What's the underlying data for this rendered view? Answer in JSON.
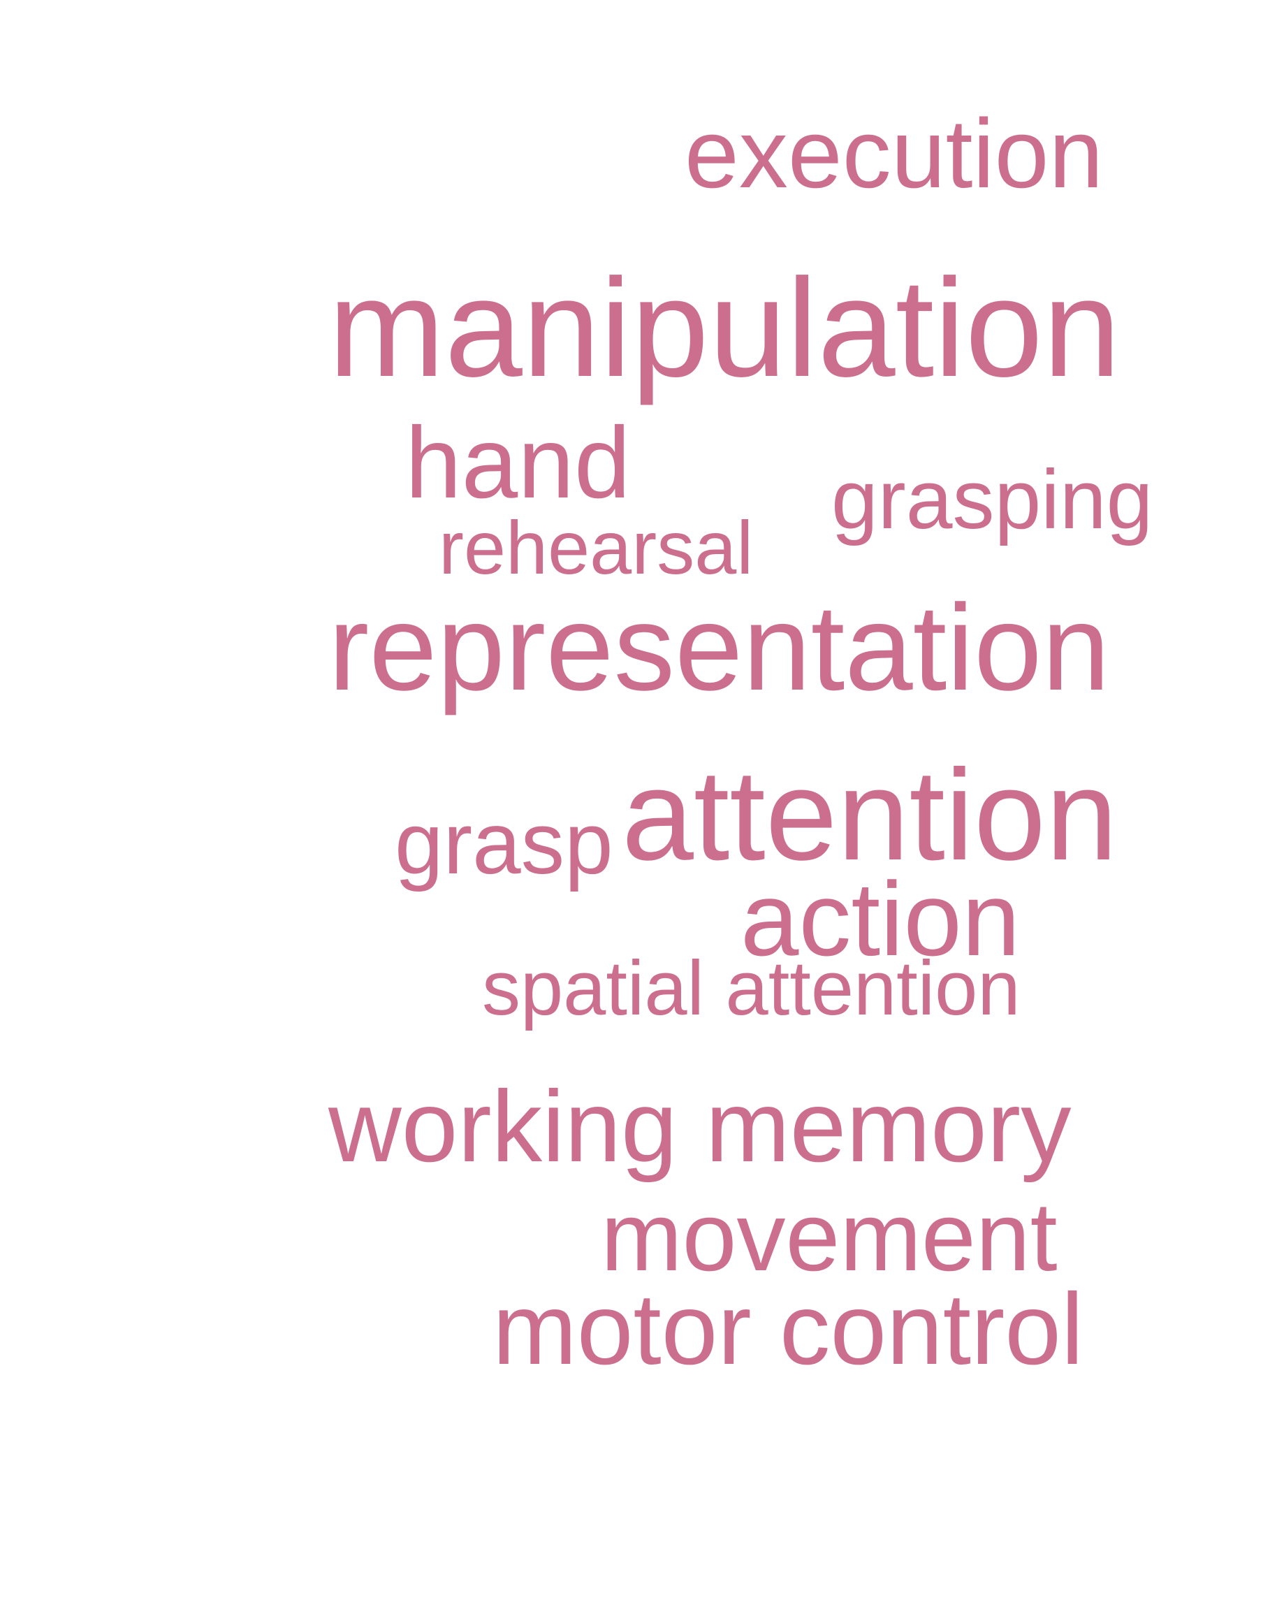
{
  "colors": {
    "background": "#ffffff",
    "word": "#cc6f8f"
  },
  "words": {
    "execution": "execution",
    "manipulation": "manipulation",
    "hand": "hand",
    "grasping": "grasping",
    "rehearsal": "rehearsal",
    "representation": "representation",
    "grasp": "grasp",
    "attention": "attention",
    "action": "action",
    "spatial_attention": "spatial attention",
    "working_memory": "working memory",
    "movement": "movement",
    "motor_control": "motor control"
  }
}
